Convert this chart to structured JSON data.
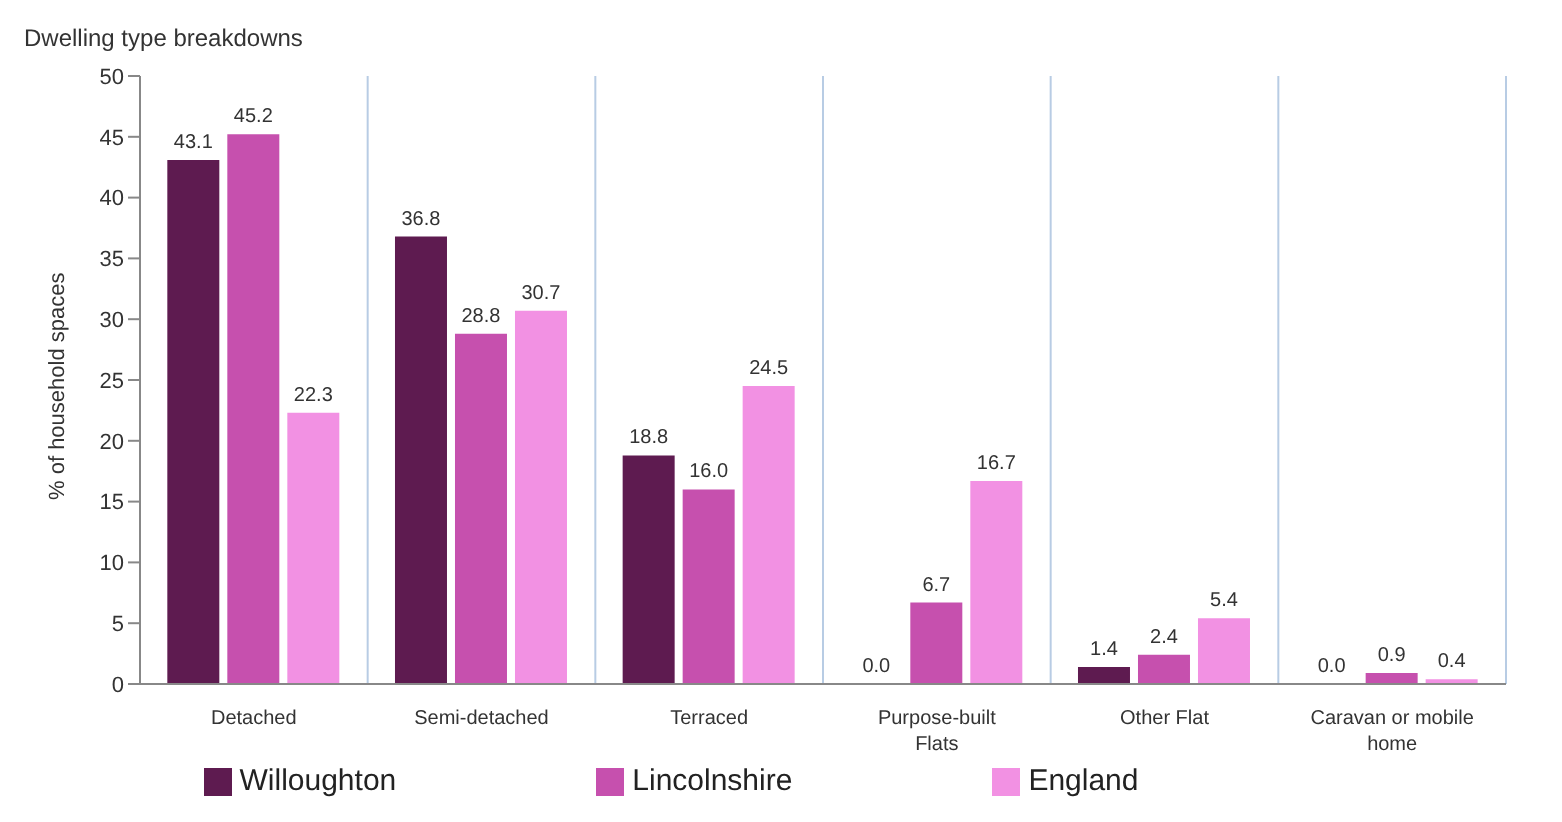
{
  "chart_data": {
    "type": "bar",
    "title": "Dwelling type breakdowns",
    "ylabel": "% of household spaces",
    "categories": [
      "Detached",
      "Semi-detached",
      "Terraced",
      "Purpose-built Flats",
      "Other Flat",
      "Caravan or mobile home"
    ],
    "series": [
      {
        "name": "Willoughton",
        "color": "#5e1b50",
        "values": [
          43.1,
          36.8,
          18.8,
          0.0,
          1.4,
          0.0
        ],
        "value_labels": [
          "43.1",
          "36.8",
          "18.8",
          "0.0",
          "1.4",
          "0.0"
        ]
      },
      {
        "name": "Lincolnshire",
        "color": "#c650ae",
        "values": [
          45.2,
          28.8,
          16.0,
          6.7,
          2.4,
          0.9
        ],
        "value_labels": [
          "45.2",
          "28.8",
          "16.0",
          "6.7",
          "2.4",
          "0.9"
        ]
      },
      {
        "name": "England",
        "color": "#f291e3",
        "values": [
          22.3,
          30.7,
          24.5,
          16.7,
          5.4,
          0.4
        ],
        "value_labels": [
          "22.3",
          "30.7",
          "24.5",
          "16.7",
          "5.4",
          "0.4"
        ]
      }
    ],
    "ylim": [
      0,
      50
    ],
    "yticks": [
      0,
      5,
      10,
      15,
      20,
      25,
      30,
      35,
      40,
      45,
      50
    ],
    "grid": "x",
    "legend": "bottom"
  }
}
